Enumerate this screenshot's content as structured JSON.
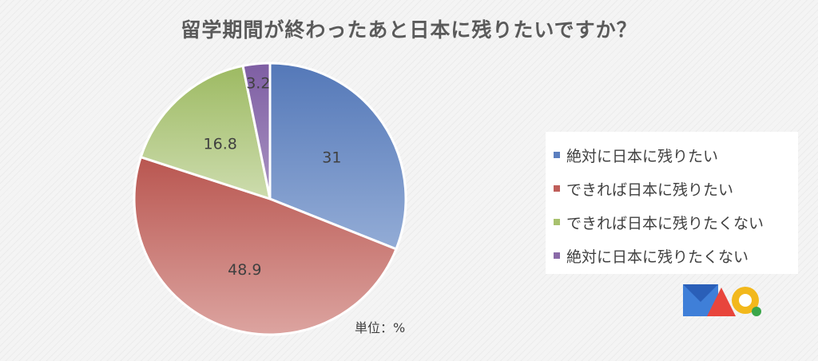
{
  "chart_data": {
    "type": "pie",
    "title": "留学期間が終わったあと日本に残りたいですか？",
    "categories": [
      "絶対に日本に残りたい",
      "できれば日本に残りたい",
      "できれば日本に残りたくない",
      "絶対に日本に残りたくない"
    ],
    "values": [
      31,
      48.9,
      16.8,
      3.2
    ],
    "colors": [
      "#5b7fbf",
      "#bf5e5a",
      "#a8c16e",
      "#8a6aa8"
    ],
    "legend_position": "right",
    "unit_label": "単位：%"
  }
}
